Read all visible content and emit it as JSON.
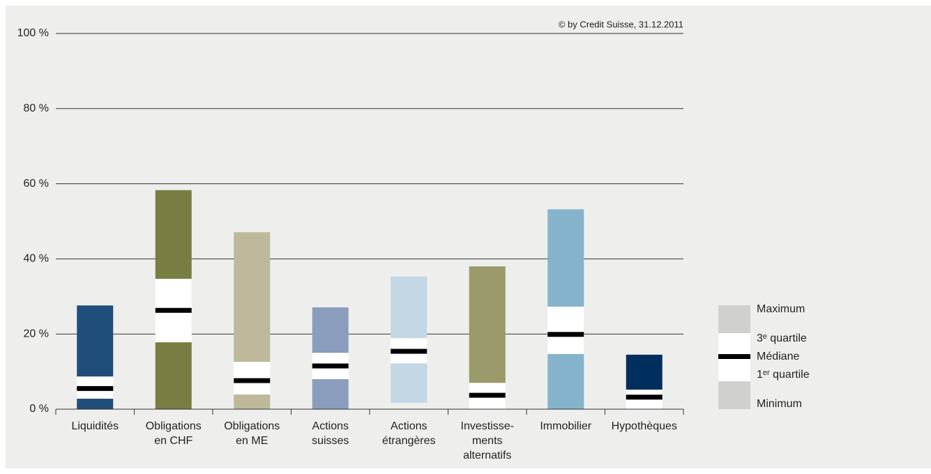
{
  "chart_data": {
    "type": "box",
    "annotation": "© by Credit Suisse, 31.12.2011",
    "categories": [
      [
        "Liquidités"
      ],
      [
        "Obligations",
        "en CHF"
      ],
      [
        "Obligations",
        "en ME"
      ],
      [
        "Actions",
        "suisses"
      ],
      [
        "Actions",
        "étrangères"
      ],
      [
        "Investisse-",
        "ments",
        "alternatifs"
      ],
      [
        "Immobilier"
      ],
      [
        "Hypothèques"
      ]
    ],
    "colors": [
      "#1f4e7a",
      "#7a7d42",
      "#bdb99a",
      "#8a9dbd",
      "#c3d7e5",
      "#9a9a6a",
      "#85b3cb",
      "#002f5e"
    ],
    "min": [
      0,
      0,
      0,
      0,
      1.7,
      0,
      0,
      0
    ],
    "q1": [
      2.8,
      17.8,
      3.9,
      8.0,
      12.2,
      0,
      14.7,
      0
    ],
    "median": [
      5.5,
      26.3,
      7.6,
      11.5,
      15.4,
      3.7,
      19.9,
      3.2
    ],
    "q3": [
      8.7,
      34.7,
      12.6,
      15.0,
      18.9,
      7.0,
      27.3,
      5.2
    ],
    "max": [
      27.6,
      58.3,
      47.1,
      27.1,
      35.3,
      38.0,
      53.2,
      14.5
    ],
    "ylim": [
      0,
      100
    ],
    "yticks": [
      {
        "value": 0,
        "label": "0 %"
      },
      {
        "value": 20,
        "label": "20 %"
      },
      {
        "value": 40,
        "label": "40 %"
      },
      {
        "value": 60,
        "label": "60 %"
      },
      {
        "value": 80,
        "label": "80 %"
      },
      {
        "value": 100,
        "label": "100 %"
      }
    ],
    "grid": true,
    "legend": [
      "Maximum",
      "3ᵉ quartile",
      "Médiane",
      "1ᵉʳ quartile",
      "Minimum"
    ],
    "legend_color": "#d0d0cc"
  }
}
